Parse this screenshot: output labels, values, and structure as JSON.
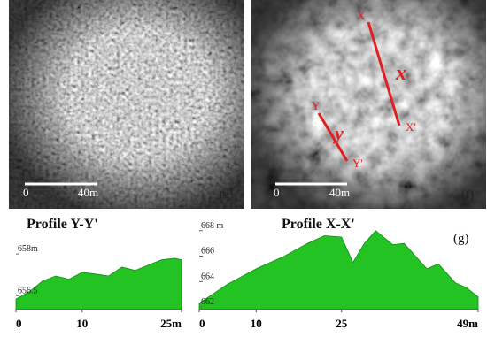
{
  "panels": {
    "e": {
      "scale_start": "0",
      "scale_end": "40m",
      "label": "(e)"
    },
    "f": {
      "scale_start": "0",
      "scale_end": "40m",
      "label": "(f)",
      "x_start": "X",
      "x_mark": "x",
      "x_end": "X'",
      "y_start": "Y",
      "y_mark": "y",
      "y_end": "Y'"
    }
  },
  "chart_data": [
    {
      "type": "area",
      "title": "Profile Y-Y'",
      "color": "#22c322",
      "x": [
        0,
        2,
        4,
        6,
        8,
        10,
        12,
        14,
        16,
        18,
        20,
        22,
        24,
        25
      ],
      "values": [
        656.38,
        656.64,
        657.02,
        657.21,
        657.09,
        657.34,
        657.28,
        657.21,
        657.53,
        657.41,
        657.6,
        657.79,
        657.85,
        657.79
      ],
      "xlim": [
        0,
        25
      ],
      "xticks": [
        0,
        10,
        {
          "value": 25,
          "label": "25m"
        }
      ],
      "ylim": [
        656,
        658.8
      ],
      "yticks": [
        {
          "value": 658,
          "label": "658m"
        },
        656.5
      ]
    },
    {
      "type": "area",
      "title": "Profile X-X'",
      "color": "#22c322",
      "annotation": "(g)",
      "x": [
        0,
        5,
        10,
        15,
        19,
        22,
        25,
        27,
        29,
        31,
        34,
        36,
        38,
        40,
        42,
        45,
        47,
        49
      ],
      "values": [
        662.3,
        663.8,
        665.0,
        666.0,
        667.0,
        667.6,
        667.5,
        665.5,
        667.0,
        668.0,
        666.9,
        667.0,
        666.0,
        665.0,
        665.4,
        663.9,
        663.5,
        662.8
      ],
      "xlim": [
        0,
        49
      ],
      "xticks": [
        0,
        10,
        25,
        {
          "value": 49,
          "label": "49m"
        }
      ],
      "ylim": [
        661.8,
        668.4
      ],
      "yticks": [
        {
          "value": 668,
          "label": "668 m"
        },
        666,
        664,
        662
      ]
    }
  ]
}
